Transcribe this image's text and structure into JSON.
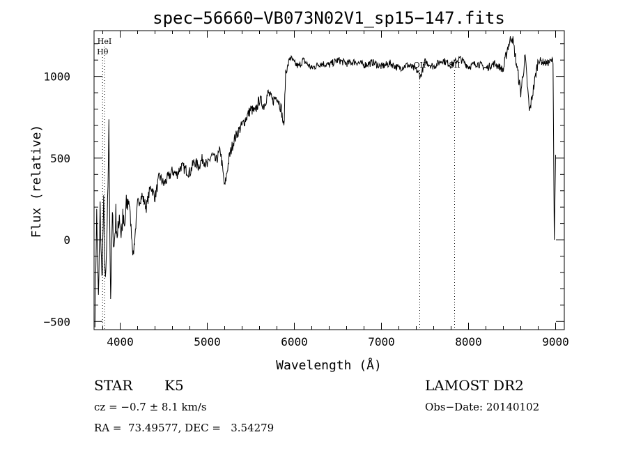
{
  "chart_data": {
    "type": "line",
    "title": "spec−56660−VB073N02V1_sp15−147.fits",
    "xlabel": "Wavelength (Å)",
    "ylabel": "Flux (relative)",
    "xlim": [
      3700,
      9100
    ],
    "ylim": [
      -550,
      1280
    ],
    "xticks": [
      4000,
      5000,
      6000,
      7000,
      8000,
      9000
    ],
    "xtick_labels": [
      "4000",
      "5000",
      "6000",
      "7000",
      "8000",
      "9000"
    ],
    "yticks": [
      -500,
      0,
      500,
      1000
    ],
    "ytick_labels": [
      "−500",
      "0",
      "500",
      "1000"
    ],
    "grid": false,
    "line_annotations": [
      {
        "label": "HeI",
        "x": 3820,
        "level": "top"
      },
      {
        "label": "Hθ",
        "x": 3798,
        "level": "second"
      },
      {
        "label": "OII",
        "x": 7440,
        "level": "upper"
      },
      {
        "label": "SII",
        "x": 7840,
        "level": "upper"
      }
    ],
    "series": [
      {
        "x": [
          3710,
          3730,
          3750,
          3770,
          3790,
          3810,
          3830,
          3850,
          3870,
          3890,
          3910,
          3930,
          3950,
          3970,
          3990,
          4010,
          4030,
          4050,
          4070,
          4100,
          4150,
          4200,
          4250,
          4300,
          4350,
          4400,
          4450,
          4500,
          4550,
          4600,
          4650,
          4700,
          4750,
          4800,
          4850,
          4900,
          4950,
          5000,
          5050,
          5100,
          5150,
          5200,
          5250,
          5300,
          5350,
          5400,
          5450,
          5500,
          5550,
          5600,
          5650,
          5700,
          5750,
          5800,
          5850,
          5880,
          5900,
          5920,
          5950,
          6000,
          6050,
          6100,
          6200,
          6300,
          6400,
          6500,
          6600,
          6700,
          6800,
          6900,
          7000,
          7100,
          7200,
          7300,
          7400,
          7450,
          7500,
          7600,
          7700,
          7800,
          7900,
          8000,
          8100,
          8200,
          8300,
          8400,
          8450,
          8500,
          8550,
          8600,
          8650,
          8700,
          8800,
          8900,
          8970,
          8985,
          9000
        ],
        "y": [
          -450,
          150,
          -380,
          180,
          -250,
          200,
          -300,
          20,
          680,
          -350,
          130,
          -50,
          150,
          0,
          170,
          40,
          120,
          60,
          200,
          250,
          -100,
          220,
          270,
          200,
          330,
          260,
          390,
          340,
          380,
          420,
          400,
          450,
          430,
          410,
          480,
          450,
          500,
          450,
          520,
          480,
          550,
          320,
          500,
          600,
          660,
          700,
          750,
          800,
          780,
          860,
          820,
          900,
          850,
          880,
          800,
          680,
          1030,
          1050,
          1120,
          1080,
          1060,
          1100,
          1050,
          1080,
          1070,
          1100,
          1080,
          1090,
          1070,
          1085,
          1060,
          1080,
          1050,
          1070,
          1040,
          1000,
          1090,
          1060,
          1100,
          1070,
          1110,
          1060,
          1080,
          1050,
          1080,
          1040,
          1180,
          1250,
          1080,
          900,
          1120,
          780,
          1100,
          1080,
          1100,
          0,
          520
        ]
      }
    ]
  },
  "info": {
    "object_class": "STAR",
    "subclass": "K5",
    "redshift": "cz = −0.7 ± 8.1 km/s",
    "coords": "RA =  73.49577, DEC =   3.54279",
    "survey": "LAMOST DR2",
    "obs_date": "Obs−Date: 20140102"
  }
}
